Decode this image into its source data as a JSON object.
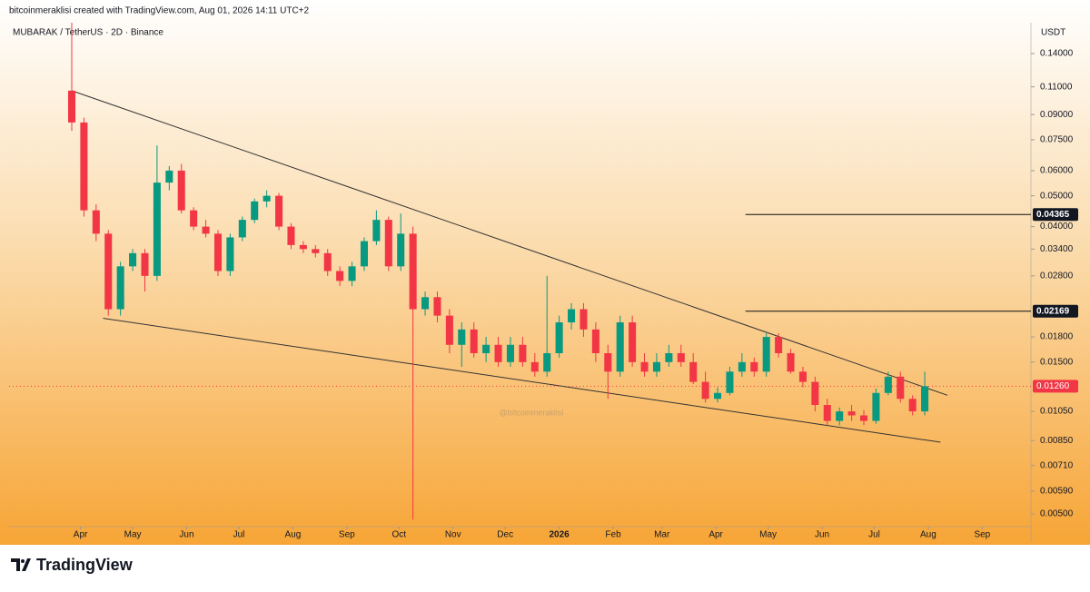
{
  "header": {
    "credit": "bitcoinmeraklisi created with TradingView.com, Aug 01, 2026 14:11 UTC+2",
    "brand": "TradingView"
  },
  "chart_data": {
    "type": "candlestick",
    "symbol": "MUBARAK / TetherUS · 2D · Binance",
    "currency": "USDT",
    "watermark": "@bitcoinmeraklisi",
    "log_scale": true,
    "up_color": "#089981",
    "down_color": "#f23645",
    "x": [
      -5,
      2,
      9,
      16,
      23,
      30,
      37,
      44,
      51,
      58,
      65,
      72,
      79,
      86,
      93,
      100,
      107,
      114,
      121,
      128,
      135,
      142,
      149,
      156,
      163,
      170,
      177,
      184,
      191,
      198,
      205,
      212,
      219,
      226,
      233,
      240,
      247,
      254,
      261,
      268,
      275,
      282,
      289,
      296,
      303,
      310,
      317,
      324,
      331,
      338,
      345,
      352,
      359,
      366,
      373,
      380,
      387,
      394,
      401,
      408,
      415,
      422,
      429,
      436,
      443,
      450,
      457,
      464,
      471,
      478,
      485
    ],
    "open": [
      0.107,
      0.085,
      0.045,
      0.038,
      0.022,
      0.03,
      0.033,
      0.028,
      0.055,
      0.06,
      0.045,
      0.04,
      0.038,
      0.029,
      0.037,
      0.042,
      0.048,
      0.05,
      0.04,
      0.035,
      0.034,
      0.033,
      0.029,
      0.027,
      0.03,
      0.036,
      0.042,
      0.03,
      0.038,
      0.022,
      0.024,
      0.021,
      0.017,
      0.019,
      0.016,
      0.017,
      0.015,
      0.017,
      0.015,
      0.014,
      0.016,
      0.02,
      0.022,
      0.019,
      0.016,
      0.014,
      0.02,
      0.015,
      0.014,
      0.015,
      0.016,
      0.015,
      0.013,
      0.0115,
      0.012,
      0.014,
      0.015,
      0.014,
      0.018,
      0.016,
      0.014,
      0.013,
      0.011,
      0.0098,
      0.0105,
      0.0102,
      0.0098,
      0.012,
      0.0135,
      0.0115,
      0.0105
    ],
    "high": [
      0.175,
      0.088,
      0.047,
      0.039,
      0.031,
      0.034,
      0.034,
      0.072,
      0.062,
      0.063,
      0.046,
      0.042,
      0.039,
      0.038,
      0.043,
      0.049,
      0.052,
      0.051,
      0.041,
      0.036,
      0.035,
      0.034,
      0.03,
      0.031,
      0.037,
      0.045,
      0.043,
      0.044,
      0.04,
      0.025,
      0.025,
      0.022,
      0.02,
      0.02,
      0.018,
      0.018,
      0.018,
      0.018,
      0.016,
      0.028,
      0.021,
      0.023,
      0.023,
      0.02,
      0.017,
      0.021,
      0.021,
      0.016,
      0.016,
      0.017,
      0.017,
      0.016,
      0.014,
      0.0125,
      0.0145,
      0.016,
      0.0155,
      0.0185,
      0.0185,
      0.0165,
      0.0145,
      0.0135,
      0.0115,
      0.0108,
      0.011,
      0.0106,
      0.0124,
      0.014,
      0.014,
      0.0118,
      0.014
    ],
    "low": [
      0.08,
      0.043,
      0.036,
      0.021,
      0.021,
      0.029,
      0.025,
      0.027,
      0.052,
      0.044,
      0.039,
      0.037,
      0.028,
      0.028,
      0.036,
      0.041,
      0.046,
      0.039,
      0.034,
      0.033,
      0.032,
      0.028,
      0.026,
      0.026,
      0.029,
      0.035,
      0.029,
      0.029,
      0.0048,
      0.021,
      0.02,
      0.016,
      0.0145,
      0.0155,
      0.015,
      0.0145,
      0.0145,
      0.0145,
      0.0135,
      0.0135,
      0.0155,
      0.019,
      0.018,
      0.015,
      0.0115,
      0.0135,
      0.0145,
      0.0135,
      0.0135,
      0.0145,
      0.0145,
      0.0128,
      0.0112,
      0.0112,
      0.0118,
      0.0135,
      0.0135,
      0.0135,
      0.0155,
      0.0138,
      0.0125,
      0.0105,
      0.0095,
      0.0095,
      0.0098,
      0.0095,
      0.0096,
      0.0118,
      0.0112,
      0.0102,
      0.0102
    ],
    "close": [
      0.085,
      0.045,
      0.038,
      0.022,
      0.03,
      0.033,
      0.028,
      0.055,
      0.06,
      0.045,
      0.04,
      0.038,
      0.029,
      0.037,
      0.042,
      0.048,
      0.05,
      0.04,
      0.035,
      0.034,
      0.033,
      0.029,
      0.027,
      0.03,
      0.036,
      0.042,
      0.03,
      0.038,
      0.022,
      0.024,
      0.021,
      0.017,
      0.019,
      0.016,
      0.017,
      0.015,
      0.017,
      0.015,
      0.014,
      0.016,
      0.02,
      0.022,
      0.019,
      0.016,
      0.014,
      0.02,
      0.015,
      0.014,
      0.015,
      0.016,
      0.015,
      0.013,
      0.0115,
      0.012,
      0.014,
      0.015,
      0.014,
      0.018,
      0.016,
      0.014,
      0.013,
      0.011,
      0.0098,
      0.0105,
      0.0102,
      0.0098,
      0.012,
      0.0135,
      0.0115,
      0.0105,
      0.0126
    ],
    "trendlines": [
      {
        "x": [
          -5,
          498
        ],
        "y": [
          0.107,
          0.0118
        ]
      },
      {
        "x": [
          13,
          494
        ],
        "y": [
          0.0206,
          0.0084
        ]
      }
    ],
    "levels": [
      {
        "value": 0.04365,
        "x_start": 382
      },
      {
        "value": 0.02169,
        "x_start": 382
      }
    ],
    "last_price": {
      "value": 0.0126,
      "label": "0.01260",
      "color": "#f23645"
    },
    "xlim": [
      -41,
      546
    ],
    "xticks": [
      {
        "value": 0,
        "label": "Apr"
      },
      {
        "value": 30,
        "label": "May"
      },
      {
        "value": 61,
        "label": "Jun"
      },
      {
        "value": 91,
        "label": "Jul"
      },
      {
        "value": 122,
        "label": "Aug"
      },
      {
        "value": 153,
        "label": "Sep"
      },
      {
        "value": 183,
        "label": "Oct"
      },
      {
        "value": 214,
        "label": "Nov"
      },
      {
        "value": 244,
        "label": "Dec"
      },
      {
        "value": 275,
        "label": "2026"
      },
      {
        "value": 306,
        "label": "Feb"
      },
      {
        "value": 334,
        "label": "Mar"
      },
      {
        "value": 365,
        "label": "Apr"
      },
      {
        "value": 395,
        "label": "May"
      },
      {
        "value": 426,
        "label": "Jun"
      },
      {
        "value": 456,
        "label": "Jul"
      },
      {
        "value": 487,
        "label": "Aug"
      },
      {
        "value": 518,
        "label": "Sep"
      }
    ],
    "ylim": [
      0.00456,
      0.175
    ],
    "yticks": [
      {
        "value": 0.14,
        "label": "0.14000"
      },
      {
        "value": 0.11,
        "label": "0.11000"
      },
      {
        "value": 0.09,
        "label": "0.09000"
      },
      {
        "value": 0.075,
        "label": "0.07500"
      },
      {
        "value": 0.06,
        "label": "0.06000"
      },
      {
        "value": 0.05,
        "label": "0.05000"
      },
      {
        "value": 0.04,
        "label": "0.04000"
      },
      {
        "value": 0.034,
        "label": "0.03400"
      },
      {
        "value": 0.028,
        "label": "0.02800"
      },
      {
        "value": 0.018,
        "label": "0.01800"
      },
      {
        "value": 0.015,
        "label": "0.01500"
      },
      {
        "value": 0.0105,
        "label": "0.01050"
      },
      {
        "value": 0.0085,
        "label": "0.00850"
      },
      {
        "value": 0.0071,
        "label": "0.00710"
      },
      {
        "value": 0.0059,
        "label": "0.00590"
      },
      {
        "value": 0.005,
        "label": "0.00500"
      }
    ]
  }
}
